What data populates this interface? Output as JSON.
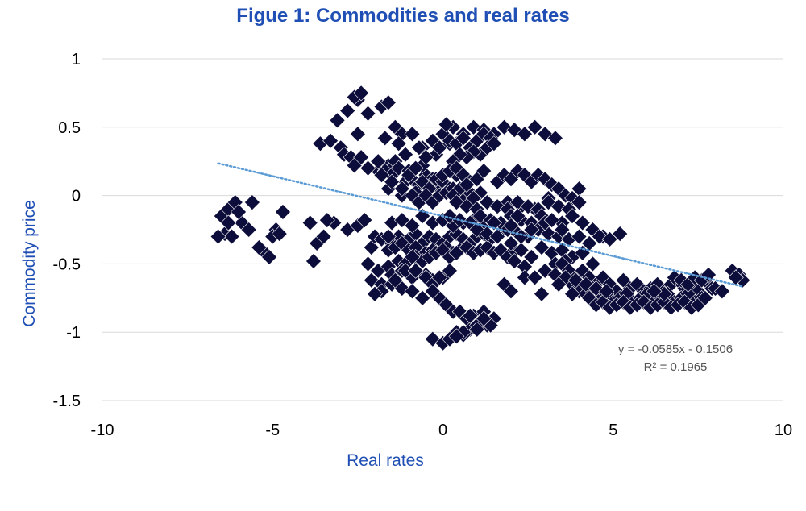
{
  "chart_data": {
    "type": "scatter",
    "title": "Figue 1: Commodities and real rates",
    "xlabel": "Real rates",
    "ylabel": "Commodity  price",
    "xlim": [
      -10,
      10
    ],
    "ylim": [
      -1.5,
      1
    ],
    "xticks": [
      "-10",
      "-5",
      "0",
      "5",
      "10"
    ],
    "yticks": [
      "1",
      "0.5",
      "0",
      "-0.5",
      "-1",
      "-1.5"
    ],
    "grid": "horizontal",
    "legend": "none",
    "marker": "diamond",
    "marker_color": "#0d0d3b",
    "trendline": {
      "type": "linear",
      "slope": -0.0585,
      "intercept": -0.1506,
      "x_range": [
        -6.6,
        8.8
      ],
      "color": "#5b9bd5",
      "style": "dotted",
      "equation": "y = -0.0585x - 0.1506",
      "r_squared": "R² = 0.1965"
    },
    "series": [
      {
        "x": [
          -6.5,
          -6.3,
          -6.1,
          -5.9,
          -5.7,
          -6.4,
          -6.2,
          -5.6,
          -5.3,
          -5.1,
          -4.9,
          -5.0,
          -4.7,
          -6.6,
          -6.0,
          -5.4,
          -4.8,
          -6.3,
          -3.9,
          -3.7,
          -3.5,
          -3.2,
          -2.8,
          -3.4,
          -3.8,
          -2.5,
          -2.3,
          -2.1,
          -2.0,
          -1.8,
          -3.6,
          -3.3,
          -3.0,
          -2.9,
          -2.7,
          -2.6,
          -2.4,
          -2.2,
          -1.9,
          -1.6,
          -1.5,
          -1.4,
          -2.8,
          -3.1,
          -2.5,
          -2.2,
          -1.9,
          -1.7,
          -1.5,
          -1.3,
          -1.1,
          -0.9,
          -0.7,
          -0.5,
          -0.3,
          -0.1,
          -1.6,
          -1.2,
          -0.8,
          -0.4,
          -1.0,
          -0.6,
          -0.2,
          -2.6,
          -2.4,
          -2.2,
          -2.5,
          -1.8,
          -1.6,
          -1.4,
          -1.2,
          -0.9,
          -0.6,
          -1.7,
          -1.3,
          -1.8,
          -1.5,
          -1.2,
          -1.0,
          -0.8,
          -0.6,
          -0.4,
          -0.2,
          0.0,
          0.2,
          0.4,
          -1.1,
          -0.7,
          -0.3,
          -0.5,
          -0.1,
          0.1,
          -0.9,
          -0.7,
          -0.5,
          -0.3,
          -0.1,
          0.1,
          0.3,
          0.5,
          0.6,
          0.8,
          -1.5,
          -1.3,
          -1.0,
          -0.8,
          -0.6,
          -0.4,
          -0.2,
          0.0,
          0.2,
          0.4,
          0.6,
          0.8,
          1.0,
          1.2,
          1.4,
          -1.6,
          -1.4,
          -1.2,
          -1.0,
          -0.8,
          -0.5,
          -0.3,
          0.1,
          0.3,
          0.5,
          0.7,
          0.9,
          1.1,
          1.3,
          1.5,
          1.7,
          1.9,
          2.1,
          -2.2,
          -1.9,
          -1.6,
          -1.3,
          -1.1,
          -0.8,
          -0.6,
          -0.4,
          -0.2,
          0.0,
          0.2,
          0.4,
          -2.1,
          -1.8,
          -1.5,
          -1.2,
          -0.9,
          -0.5,
          -0.3,
          0.0,
          0.2,
          -1.5,
          -1.2,
          -0.9,
          -0.6,
          -0.3,
          0.0,
          0.3,
          0.6,
          0.9,
          1.2,
          1.5,
          1.8,
          0.0,
          0.3,
          0.6,
          0.9,
          1.2,
          1.5,
          1.8,
          2.1,
          2.4,
          2.7,
          3.0,
          3.3,
          0.1,
          0.2,
          0.2,
          0.4,
          0.6,
          0.8,
          1.0,
          1.2,
          1.4,
          1.1,
          0.9,
          0.7,
          0.5,
          0.3,
          1.3,
          1.5,
          0.0,
          0.2,
          0.4,
          0.6,
          0.8,
          1.0,
          1.2,
          0.5,
          0.7,
          1.1,
          0.3,
          0.9,
          1.6,
          1.8,
          2.0,
          2.2,
          2.4,
          2.6,
          2.8,
          3.0,
          3.2,
          3.4,
          3.6,
          3.8,
          4.0,
          1.9,
          2.3,
          2.7,
          3.1,
          0.4,
          0.7,
          1.0,
          1.3,
          1.6,
          1.9,
          2.2,
          2.5,
          2.8,
          3.1,
          3.4,
          3.7,
          4.0,
          0.2,
          0.5,
          0.8,
          1.1,
          1.4,
          1.7,
          2.0,
          2.3,
          2.6,
          2.9,
          3.2,
          3.5,
          3.8,
          4.1,
          4.4,
          4.7,
          1.0,
          1.3,
          1.6,
          1.9,
          2.2,
          2.5,
          2.8,
          3.1,
          3.4,
          3.7,
          4.0,
          4.3,
          4.6,
          4.9,
          5.2,
          2.0,
          2.3,
          2.6,
          2.9,
          3.2,
          3.5,
          3.8,
          4.1,
          4.4,
          3.0,
          3.3,
          3.6,
          2.1,
          2.4,
          1.5,
          2.0,
          2.2,
          2.6,
          3.0,
          3.2,
          3.5,
          1.6,
          2.3,
          1.8,
          2.0,
          2.4,
          2.9,
          3.3,
          3.5,
          3.7,
          3.9,
          4.1,
          4.3,
          4.5,
          4.7,
          4.9,
          5.1,
          5.3,
          5.5,
          5.7,
          5.9,
          6.1,
          6.3,
          6.5,
          6.7,
          6.9,
          7.1,
          7.3,
          7.5,
          7.7,
          7.9,
          3.8,
          4.0,
          4.2,
          4.4,
          4.6,
          4.8,
          5.0,
          5.2,
          5.4,
          5.6,
          5.8,
          6.0,
          6.2,
          6.4,
          6.6,
          6.8,
          7.0,
          7.2,
          7.4,
          7.6,
          4.3,
          4.5,
          4.7,
          4.9,
          5.1,
          5.3,
          5.5,
          5.7,
          5.9,
          6.1,
          6.3,
          6.5,
          6.7,
          6.9,
          7.1,
          7.3,
          7.5,
          3.0,
          3.3,
          3.6,
          3.9,
          4.2,
          4.5,
          4.8,
          2.7,
          3.4,
          3.8,
          6.8,
          7.0,
          7.2,
          7.4,
          7.6,
          7.8,
          8.0,
          8.2,
          8.5,
          8.7,
          8.8,
          8.6,
          7.7,
          6.5,
          6.2,
          -0.5,
          -0.3,
          -0.1,
          0.1,
          0.3,
          0.5,
          0.7,
          0.9,
          1.1,
          1.3,
          1.5,
          0.8,
          0.4,
          0.6,
          1.0,
          1.2,
          -1.8,
          -1.5,
          -1.2,
          -0.9,
          -0.6,
          -0.3,
          -2.0,
          -1.4,
          -1.1,
          -0.8,
          -1.6,
          -0.9,
          -0.3,
          0.0,
          0.2,
          0.6,
          1.0,
          1.4,
          0.4,
          0.8,
          -0.1,
          1.2
        ],
        "y": [
          -0.15,
          -0.1,
          -0.05,
          -0.2,
          -0.25,
          -0.28,
          -0.3,
          -0.05,
          -0.4,
          -0.45,
          -0.25,
          -0.3,
          -0.12,
          -0.3,
          -0.12,
          -0.38,
          -0.28,
          -0.2,
          -0.2,
          -0.35,
          -0.3,
          -0.2,
          -0.25,
          -0.18,
          -0.48,
          -0.22,
          -0.18,
          -0.38,
          -0.3,
          -0.32,
          0.38,
          0.4,
          0.35,
          0.3,
          0.28,
          0.22,
          0.28,
          0.2,
          0.18,
          0.22,
          0.2,
          0.25,
          0.62,
          0.55,
          0.7,
          0.2,
          0.25,
          0.18,
          0.15,
          0.2,
          0.1,
          0.12,
          0.08,
          0.15,
          0.12,
          0.05,
          0.05,
          0.0,
          0.02,
          0.1,
          0.18,
          0.22,
          0.3,
          0.72,
          0.75,
          0.6,
          0.45,
          0.65,
          0.68,
          0.5,
          0.45,
          0.45,
          0.35,
          0.42,
          0.38,
          0.15,
          0.1,
          0.05,
          0.15,
          0.2,
          0.1,
          0.05,
          0.12,
          0.1,
          0.05,
          0.15,
          0.3,
          0.35,
          0.4,
          0.28,
          0.35,
          0.42,
          0.0,
          -0.05,
          0.0,
          -0.05,
          0.0,
          0.02,
          0.05,
          0.0,
          -0.02,
          0.02,
          -0.35,
          -0.3,
          -0.32,
          -0.28,
          -0.35,
          -0.3,
          -0.32,
          -0.35,
          -0.3,
          -0.28,
          -0.32,
          -0.35,
          -0.3,
          -0.28,
          -0.32,
          -0.4,
          -0.38,
          -0.35,
          -0.4,
          -0.38,
          -0.42,
          -0.4,
          -0.38,
          -0.42,
          -0.4,
          -0.38,
          -0.42,
          -0.4,
          -0.38,
          -0.42,
          -0.4,
          -0.45,
          -0.4,
          -0.5,
          -0.55,
          -0.52,
          -0.48,
          -0.5,
          -0.45,
          -0.48,
          -0.45,
          -0.42,
          -0.4,
          -0.45,
          -0.42,
          -0.62,
          -0.65,
          -0.58,
          -0.55,
          -0.6,
          -0.58,
          -0.62,
          -0.6,
          -0.55,
          -0.2,
          -0.18,
          -0.22,
          -0.15,
          -0.2,
          -0.18,
          -0.22,
          -0.2,
          -0.18,
          -0.22,
          -0.2,
          -0.25,
          0.45,
          0.5,
          0.45,
          0.5,
          0.48,
          0.45,
          0.5,
          0.48,
          0.45,
          0.5,
          0.45,
          0.42,
          0.52,
          0.38,
          0.4,
          0.38,
          0.42,
          0.35,
          0.4,
          0.45,
          0.42,
          0.3,
          0.32,
          0.28,
          0.3,
          0.25,
          0.35,
          0.38,
          0.15,
          0.18,
          0.2,
          0.15,
          0.1,
          0.12,
          0.18,
          0.05,
          0.08,
          0.02,
          0.0,
          -0.02,
          0.1,
          0.15,
          0.12,
          0.18,
          0.15,
          0.1,
          0.15,
          0.12,
          0.08,
          0.05,
          0.0,
          -0.02,
          0.05,
          -0.05,
          -0.08,
          -0.1,
          -0.02,
          -0.05,
          -0.08,
          -0.1,
          -0.05,
          -0.08,
          -0.1,
          -0.05,
          -0.08,
          -0.1,
          -0.05,
          -0.08,
          -0.1,
          -0.05,
          -0.15,
          -0.18,
          -0.2,
          -0.15,
          -0.18,
          -0.2,
          -0.15,
          -0.18,
          -0.2,
          -0.15,
          -0.18,
          -0.2,
          -0.15,
          -0.2,
          -0.25,
          -0.3,
          -0.25,
          -0.28,
          -0.3,
          -0.25,
          -0.28,
          -0.3,
          -0.25,
          -0.28,
          -0.3,
          -0.32,
          -0.3,
          -0.35,
          -0.3,
          -0.32,
          -0.28,
          -0.35,
          -0.4,
          -0.45,
          -0.38,
          -0.42,
          -0.4,
          -0.45,
          -0.42,
          -0.5,
          -0.55,
          -0.5,
          -0.48,
          -0.48,
          -0.52,
          -0.2,
          -0.22,
          -0.15,
          -0.25,
          -0.2,
          -0.18,
          -0.25,
          -0.3,
          -0.3,
          -0.65,
          -0.7,
          -0.6,
          -0.72,
          -0.58,
          -0.5,
          -0.55,
          -0.6,
          -0.55,
          -0.6,
          -0.65,
          -0.6,
          -0.65,
          -0.7,
          -0.62,
          -0.68,
          -0.65,
          -0.7,
          -0.68,
          -0.65,
          -0.7,
          -0.65,
          -0.62,
          -0.68,
          -0.65,
          -0.7,
          -0.62,
          -0.68,
          -0.65,
          -0.7,
          -0.72,
          -0.68,
          -0.75,
          -0.72,
          -0.78,
          -0.75,
          -0.72,
          -0.78,
          -0.75,
          -0.72,
          -0.78,
          -0.75,
          -0.72,
          -0.78,
          -0.75,
          -0.72,
          -0.78,
          -0.75,
          -0.75,
          -0.8,
          -0.78,
          -0.82,
          -0.8,
          -0.78,
          -0.82,
          -0.8,
          -0.78,
          -0.82,
          -0.8,
          -0.78,
          -0.82,
          -0.8,
          -0.78,
          -0.82,
          -0.8,
          -0.55,
          -0.58,
          -0.6,
          -0.62,
          -0.65,
          -0.68,
          -0.7,
          -0.6,
          -0.65,
          -0.72,
          -0.6,
          -0.62,
          -0.65,
          -0.6,
          -0.62,
          -0.58,
          -0.68,
          -0.7,
          -0.55,
          -0.58,
          -0.62,
          -0.6,
          -0.75,
          -0.72,
          -0.7,
          -0.6,
          -0.65,
          -0.75,
          -0.8,
          -0.85,
          -0.85,
          -0.9,
          -0.88,
          -0.92,
          -0.95,
          -0.9,
          -0.98,
          -1.0,
          -1.02,
          -0.95,
          -0.85,
          -0.7,
          -0.65,
          -0.68,
          -0.7,
          -0.75,
          -0.7,
          -0.72,
          -0.62,
          -0.55,
          -0.55,
          -0.3,
          -0.45,
          -1.05,
          -1.08,
          -1.05,
          -1.0,
          -0.98,
          -0.95,
          -1.03,
          -0.88,
          -0.6,
          -0.9
        ]
      }
    ]
  }
}
